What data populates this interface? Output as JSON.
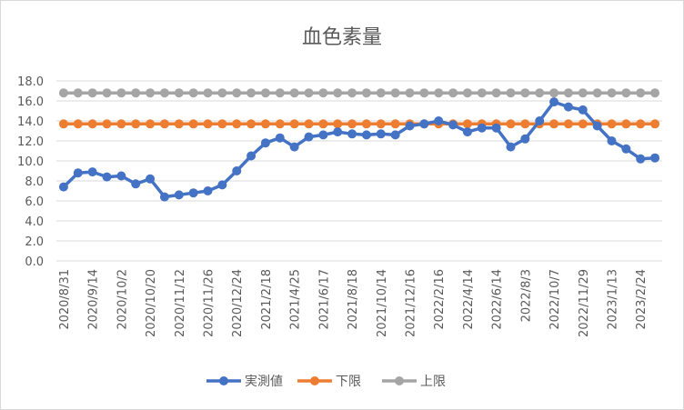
{
  "chart_data": {
    "type": "line",
    "title": "血色素量",
    "xlabel": "",
    "ylabel": "",
    "ylim": [
      0,
      18
    ],
    "yticks": [
      "0.0",
      "2.0",
      "4.0",
      "6.0",
      "8.0",
      "10.0",
      "12.0",
      "14.0",
      "16.0",
      "18.0"
    ],
    "grid": true,
    "legend_position": "bottom",
    "categories": [
      "2020/8/31",
      "",
      "2020/9/14",
      "",
      "2020/10/2",
      "",
      "2020/10/20",
      "",
      "2020/11/12",
      "",
      "2020/11/26",
      "",
      "2020/12/24",
      "",
      "2021/2/18",
      "",
      "2021/4/25",
      "",
      "2021/6/17",
      "",
      "2021/8/18",
      "",
      "2021/10/14",
      "",
      "2021/12/16",
      "",
      "2022/2/16",
      "",
      "2022/4/14",
      "",
      "2022/6/14",
      "",
      "2022/8/3",
      "",
      "2022/10/7",
      "",
      "2022/11/29",
      "",
      "2023/1/13",
      "",
      "2023/2/24",
      ""
    ],
    "series": [
      {
        "name": "実測値",
        "color": "#4472C4",
        "values": [
          7.4,
          8.8,
          8.9,
          8.4,
          8.5,
          7.7,
          8.2,
          6.4,
          6.6,
          6.8,
          7.0,
          7.6,
          9.0,
          10.5,
          11.8,
          12.3,
          11.4,
          12.4,
          12.6,
          12.9,
          12.7,
          12.6,
          12.7,
          12.6,
          13.5,
          13.7,
          14.0,
          13.6,
          12.9,
          13.3,
          13.3,
          11.4,
          12.2,
          14.0,
          15.9,
          15.4,
          15.1,
          13.5,
          12.0,
          11.2,
          10.2,
          10.3
        ]
      },
      {
        "name": "下限",
        "color": "#ED7D31",
        "constant": 13.7
      },
      {
        "name": "上限",
        "color": "#A5A5A5",
        "constant": 16.8
      }
    ]
  }
}
